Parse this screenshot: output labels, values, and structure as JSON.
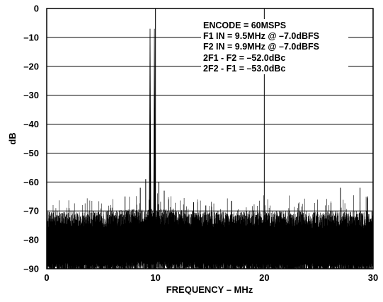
{
  "chart_data": {
    "type": "line",
    "title": "",
    "xlabel": "FREQUENCY – MHz",
    "ylabel": "dB",
    "xlim": [
      0,
      30
    ],
    "ylim": [
      -90,
      0
    ],
    "x_ticks": [
      0,
      10,
      20,
      30
    ],
    "x_tick_labels": [
      "0",
      "10",
      "20",
      "30"
    ],
    "y_ticks": [
      0,
      -10,
      -20,
      -30,
      -40,
      -50,
      -60,
      -70,
      -80,
      -90
    ],
    "y_tick_labels": [
      "0",
      "–10",
      "–20",
      "–30",
      "–40",
      "–50",
      "–60",
      "–70",
      "–80",
      "–90"
    ],
    "grid": true,
    "annotations": [
      "ENCODE = 60MSPS",
      "F1 IN = 9.5MHz @ –7.0dBFS",
      "F2 IN = 9.9MHz @ –7.0dBFS",
      "2F1 - F2 = –52.0dBc",
      "2F2 - F1 = –53.0dBc"
    ],
    "series": [
      {
        "color": "#000000",
        "tones": [
          {
            "x": 9.5,
            "y": -7.0
          },
          {
            "x": 9.9,
            "y": -7.0
          }
        ],
        "spurs": [
          {
            "x": 9.1,
            "y": -59.0
          },
          {
            "x": 10.3,
            "y": -60.0
          },
          {
            "x": 8.6,
            "y": -62.0
          },
          {
            "x": 10.8,
            "y": -63.0
          },
          {
            "x": 7.2,
            "y": -65.0
          },
          {
            "x": 11.2,
            "y": -66.0
          },
          {
            "x": 27.0,
            "y": -62.0
          },
          {
            "x": 28.8,
            "y": -62.0
          },
          {
            "x": 29.5,
            "y": -65.0
          },
          {
            "x": 13.5,
            "y": -67.0
          }
        ],
        "noise_floor": [
          {
            "x": 0,
            "y": -80.0
          },
          {
            "x": 5,
            "y": -80.0
          },
          {
            "x": 10,
            "y": -79.0
          },
          {
            "x": 15,
            "y": -80.0
          },
          {
            "x": 20,
            "y": -80.0
          },
          {
            "x": 25,
            "y": -80.0
          },
          {
            "x": 30,
            "y": -80.0
          }
        ]
      }
    ]
  }
}
